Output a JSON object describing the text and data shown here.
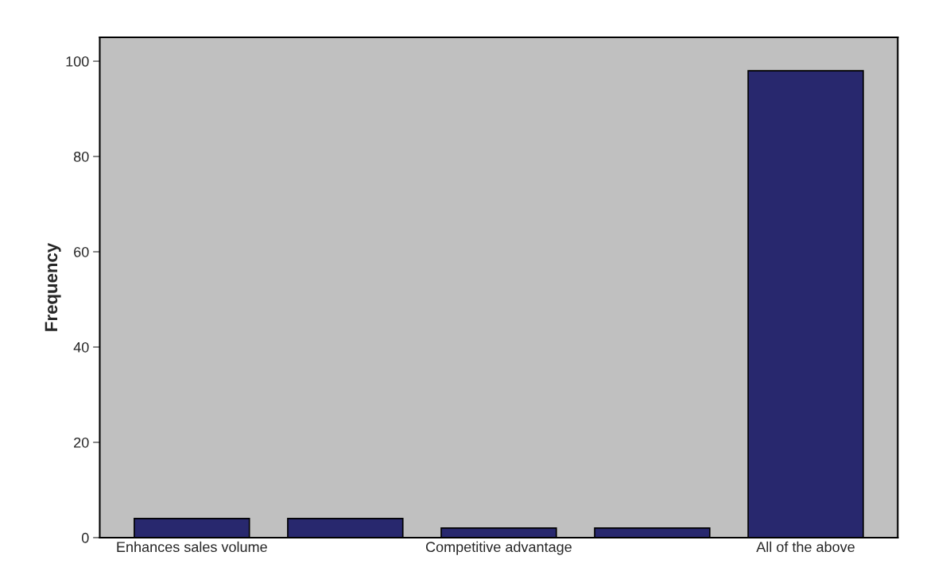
{
  "chart_data": {
    "type": "bar",
    "ylabel": "Frequency",
    "categories": [
      "Enhances sales volume",
      null,
      "Competitive advantage",
      null,
      "All of the above"
    ],
    "values": [
      4,
      4,
      2,
      2,
      98
    ],
    "color": "#28286e",
    "ylim": [
      0,
      105
    ],
    "yticks": [
      0,
      20,
      40,
      60,
      80,
      100
    ],
    "grid": false
  }
}
